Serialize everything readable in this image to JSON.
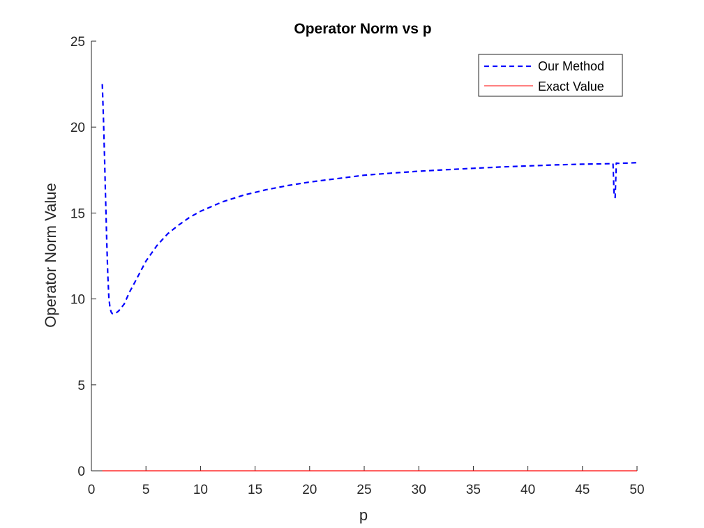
{
  "chart_data": {
    "type": "line",
    "title": "Operator Norm vs p",
    "xlabel": "p",
    "ylabel": "Operator Norm Value",
    "xlim": [
      0,
      50
    ],
    "ylim": [
      0,
      25
    ],
    "xticks": [
      0,
      5,
      10,
      15,
      20,
      25,
      30,
      35,
      40,
      45,
      50
    ],
    "yticks": [
      0,
      5,
      10,
      15,
      20,
      25
    ],
    "grid": false,
    "legend_position": "top-right",
    "series": [
      {
        "name": "Our Method",
        "color": "#0000ff",
        "line_style": "dashed",
        "x": [
          1,
          1.1,
          1.2,
          1.3,
          1.4,
          1.5,
          1.6,
          1.7,
          1.8,
          1.9,
          2,
          2.2,
          2.5,
          3,
          3.5,
          4,
          5,
          6,
          7,
          8,
          9,
          10,
          12,
          14,
          16,
          18,
          20,
          22.5,
          25,
          27.5,
          30,
          32.5,
          35,
          37.5,
          40,
          42.5,
          45,
          47.5,
          47.8,
          47.9,
          48,
          48.1,
          48.3,
          49,
          50
        ],
        "y": [
          22.5,
          20.6,
          18.3,
          15.9,
          13.5,
          11.4,
          10.1,
          9.5,
          9.25,
          9.15,
          9.15,
          9.15,
          9.3,
          9.7,
          10.4,
          11.0,
          12.2,
          13.1,
          13.8,
          14.3,
          14.75,
          15.1,
          15.65,
          16.05,
          16.35,
          16.6,
          16.8,
          17.0,
          17.2,
          17.32,
          17.43,
          17.52,
          17.6,
          17.68,
          17.74,
          17.8,
          17.84,
          17.87,
          17.88,
          16.0,
          15.9,
          17.9,
          17.89,
          17.9,
          17.93
        ]
      },
      {
        "name": "Exact Value",
        "color": "#ff0000",
        "line_style": "solid",
        "x": [
          1,
          50
        ],
        "y": [
          0,
          0
        ]
      }
    ]
  }
}
